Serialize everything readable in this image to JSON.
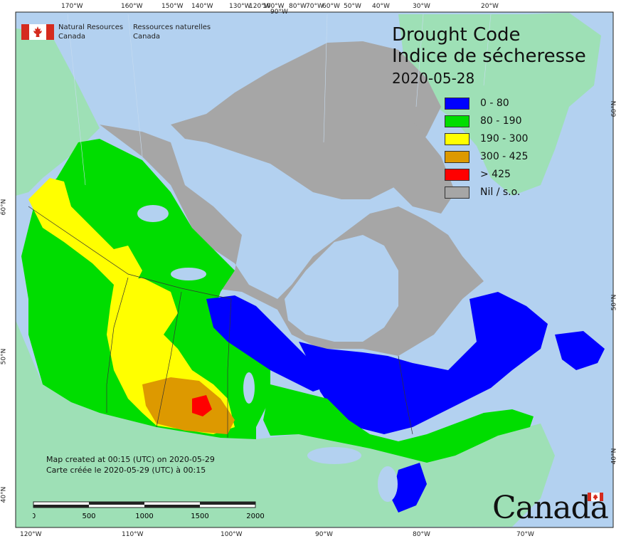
{
  "header": {
    "org_en_line1": "Natural Resources",
    "org_en_line2": "Canada",
    "org_fr_line1": "Ressources naturelles",
    "org_fr_line2": "Canada"
  },
  "title": {
    "en": "Drought Code",
    "fr": "Indice de sécheresse",
    "date": "2020-05-28"
  },
  "legend": [
    {
      "label": "0 - 80",
      "color": "#0000ff"
    },
    {
      "label": "80 - 190",
      "color": "#00dd00"
    },
    {
      "label": "190 - 300",
      "color": "#ffff00"
    },
    {
      "label": "300 - 425",
      "color": "#dd9900"
    },
    {
      "label": "> 425",
      "color": "#ff0000"
    },
    {
      "label": "Nil / s.o.",
      "color": "#a6a6a6"
    }
  ],
  "footer": {
    "created_en": "Map created at 00:15 (UTC) on 2020-05-29",
    "created_fr": "Carte créée le 2020-05-29 (UTC) à 00:15"
  },
  "scale": {
    "labels": [
      "0",
      "500",
      "1000",
      "1500",
      "2000"
    ],
    "unit": "km"
  },
  "wordmark": "Canada",
  "graticule": {
    "top": [
      "170°W",
      "160°W",
      "150°W",
      "140°W",
      "130°W",
      "120°W",
      "100°W",
      "90°W",
      "80°W",
      "70°W",
      "60°W",
      "50°W",
      "40°W",
      "30°W",
      "20°W"
    ],
    "bottom": [
      "120°W",
      "110°W",
      "100°W",
      "90°W",
      "80°W",
      "70°W"
    ],
    "left": [
      "60°N",
      "50°N",
      "40°N"
    ],
    "right": [
      "60°N",
      "50°N",
      "40°N"
    ]
  },
  "colors": {
    "ocean": "#b3d1f0",
    "land_other": "#9ee0b6",
    "nil": "#a6a6a6",
    "green": "#00dd00",
    "blue": "#0000ff",
    "yellow": "#ffff00",
    "orange": "#dd9900",
    "red": "#ff0000"
  }
}
